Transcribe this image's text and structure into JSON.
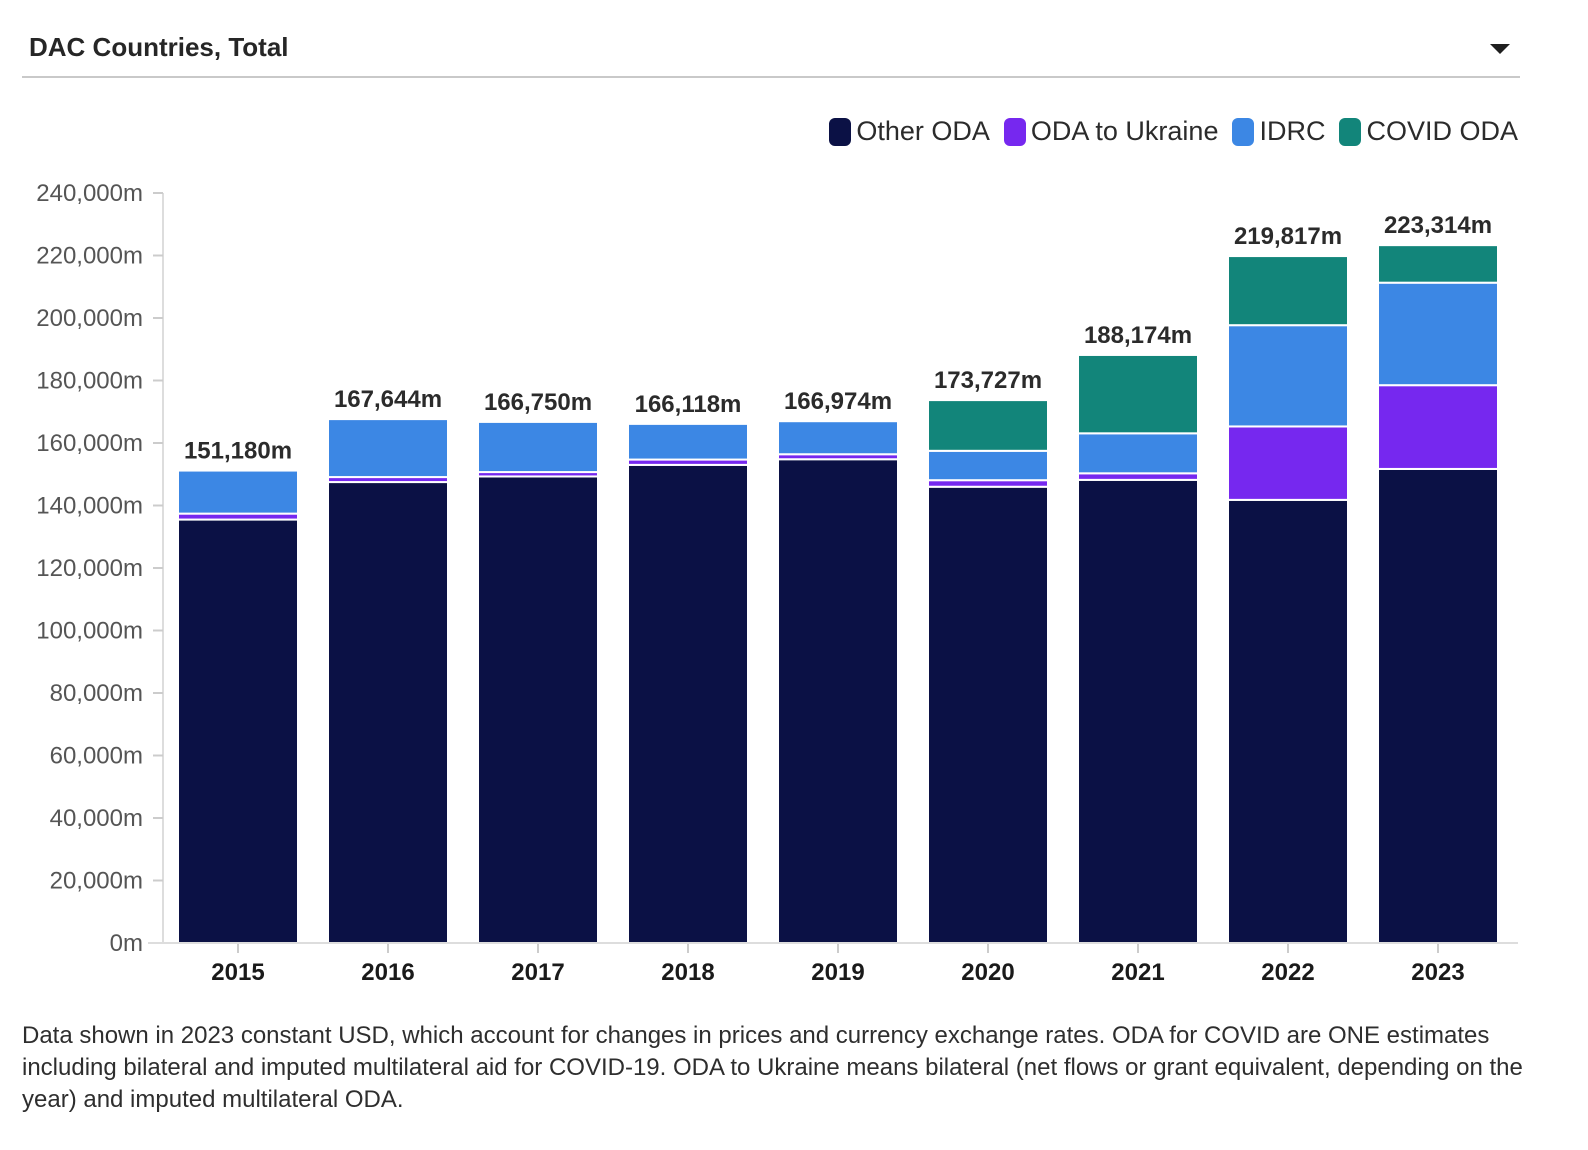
{
  "selector": {
    "label": "DAC Countries, Total",
    "icon": "chevron-down-icon"
  },
  "colors": {
    "other": "#0b1145",
    "ukraine": "#7628ef",
    "idrc": "#3c87e4",
    "covid": "#12857a"
  },
  "chart_data": {
    "type": "bar",
    "stacked": true,
    "categories": [
      "2015",
      "2016",
      "2017",
      "2018",
      "2019",
      "2020",
      "2021",
      "2022",
      "2023"
    ],
    "series": [
      {
        "name": "Other ODA",
        "key": "other",
        "values": [
          135500,
          147500,
          149300,
          153000,
          154800,
          146000,
          148200,
          141800,
          151700
        ]
      },
      {
        "name": "ODA to Ukraine",
        "key": "ukraine",
        "values": [
          1900,
          1600,
          1400,
          1700,
          1600,
          2100,
          2100,
          23500,
          26800
        ]
      },
      {
        "name": "IDRC",
        "key": "idrc",
        "values": [
          13780,
          18544,
          16050,
          11418,
          10574,
          9400,
          12800,
          32400,
          32800
        ]
      },
      {
        "name": "COVID ODA",
        "key": "covid",
        "values": [
          0,
          0,
          0,
          0,
          0,
          16227,
          25074,
          22117,
          12014
        ]
      }
    ],
    "totals": [
      "151,180m",
      "167,644m",
      "166,750m",
      "166,118m",
      "166,974m",
      "173,727m",
      "188,174m",
      "219,817m",
      "223,314m"
    ],
    "ylim": [
      0,
      240000
    ],
    "yticks": [
      0,
      20000,
      40000,
      60000,
      80000,
      100000,
      120000,
      140000,
      160000,
      180000,
      200000,
      220000,
      240000
    ],
    "ytick_labels": [
      "0m",
      "20,000m",
      "40,000m",
      "60,000m",
      "80,000m",
      "100,000m",
      "120,000m",
      "140,000m",
      "160,000m",
      "180,000m",
      "200,000m",
      "220,000m",
      "240,000m"
    ],
    "legend_position": "top-right",
    "grid": false
  },
  "note": "Data shown in 2023 constant USD, which account for changes in prices and currency exchange rates. ODA for COVID are ONE estimates including bilateral and imputed multilateral aid for COVID-19. ODA to Ukraine means bilateral (net flows or grant equivalent, depending on the year) and imputed multilateral ODA."
}
